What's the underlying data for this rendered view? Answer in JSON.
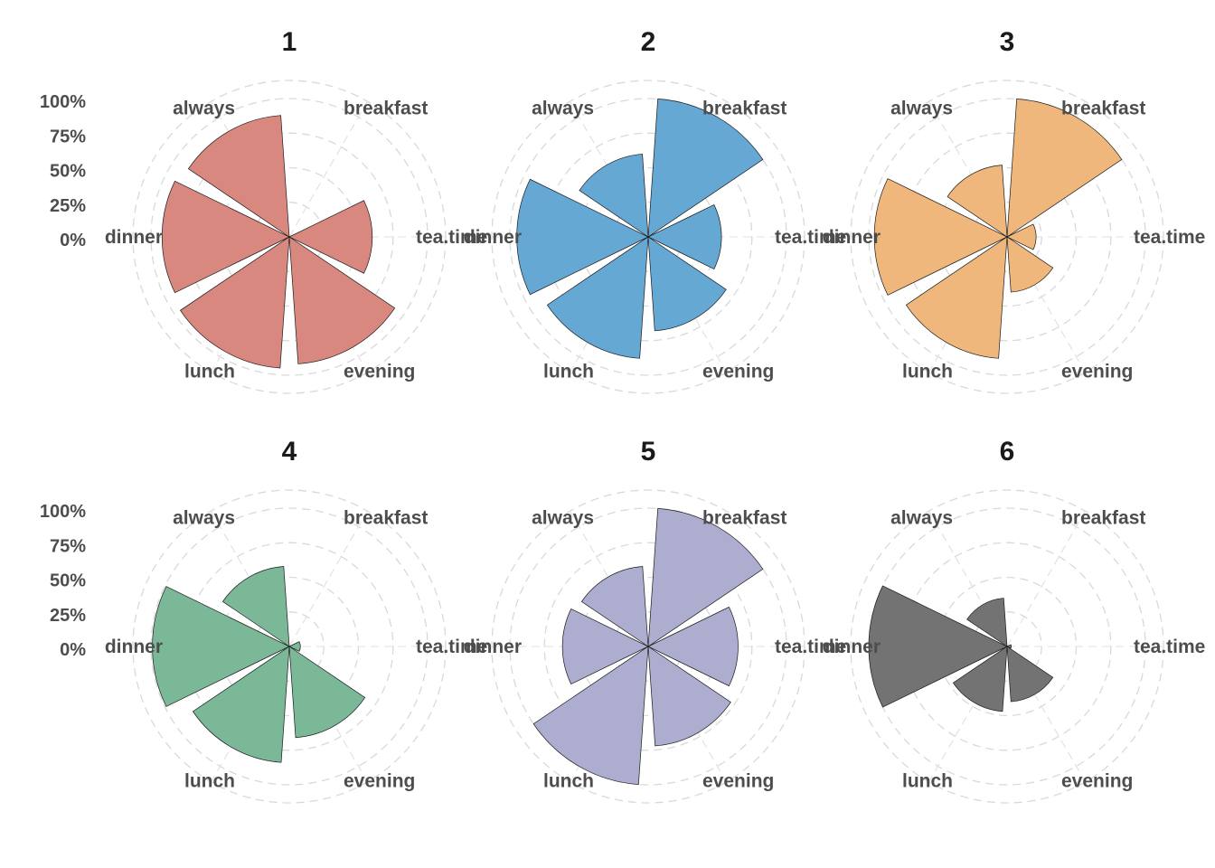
{
  "chart_data": [
    {
      "type": "polar-bar",
      "title": "1",
      "color": "#D98880",
      "categories": [
        "breakfast",
        "tea.time",
        "evening",
        "lunch",
        "dinner",
        "always"
      ],
      "values": [
        0,
        60,
        92,
        95,
        92,
        88
      ],
      "rlim": [
        0,
        100
      ],
      "radial_ticks": [
        "0%",
        "25%",
        "50%",
        "75%",
        "100%"
      ],
      "grid": true
    },
    {
      "type": "polar-bar",
      "title": "2",
      "color": "#66A8D4",
      "categories": [
        "breakfast",
        "tea.time",
        "evening",
        "lunch",
        "dinner",
        "always"
      ],
      "values": [
        100,
        53,
        68,
        88,
        95,
        60
      ],
      "rlim": [
        0,
        100
      ],
      "radial_ticks": [
        "0%",
        "25%",
        "50%",
        "75%",
        "100%"
      ],
      "grid": true
    },
    {
      "type": "polar-bar",
      "title": "3",
      "color": "#F0B77C",
      "categories": [
        "breakfast",
        "tea.time",
        "evening",
        "lunch",
        "dinner",
        "always"
      ],
      "values": [
        100,
        21,
        40,
        88,
        96,
        52
      ],
      "rlim": [
        0,
        100
      ],
      "radial_ticks": [
        "0%",
        "25%",
        "50%",
        "75%",
        "100%"
      ],
      "grid": true
    },
    {
      "type": "polar-bar",
      "title": "4",
      "color": "#7AB898",
      "categories": [
        "breakfast",
        "tea.time",
        "evening",
        "lunch",
        "dinner",
        "always"
      ],
      "values": [
        0,
        8,
        66,
        84,
        99,
        58
      ],
      "rlim": [
        0,
        100
      ],
      "radial_ticks": [
        "0%",
        "25%",
        "50%",
        "75%",
        "100%"
      ],
      "grid": true
    },
    {
      "type": "polar-bar",
      "title": "5",
      "color": "#ADADD0",
      "categories": [
        "breakfast",
        "tea.time",
        "evening",
        "lunch",
        "dinner",
        "always"
      ],
      "values": [
        100,
        65,
        72,
        100,
        62,
        58
      ],
      "rlim": [
        0,
        100
      ],
      "radial_ticks": [
        "0%",
        "25%",
        "50%",
        "75%",
        "100%"
      ],
      "grid": true
    },
    {
      "type": "polar-bar",
      "title": "6",
      "color": "#737373",
      "categories": [
        "breakfast",
        "tea.time",
        "evening",
        "lunch",
        "dinner",
        "always"
      ],
      "values": [
        0,
        3,
        40,
        47,
        100,
        35
      ],
      "rlim": [
        0,
        100
      ],
      "radial_ticks": [
        "0%",
        "25%",
        "50%",
        "75%",
        "100%"
      ],
      "grid": true
    }
  ]
}
